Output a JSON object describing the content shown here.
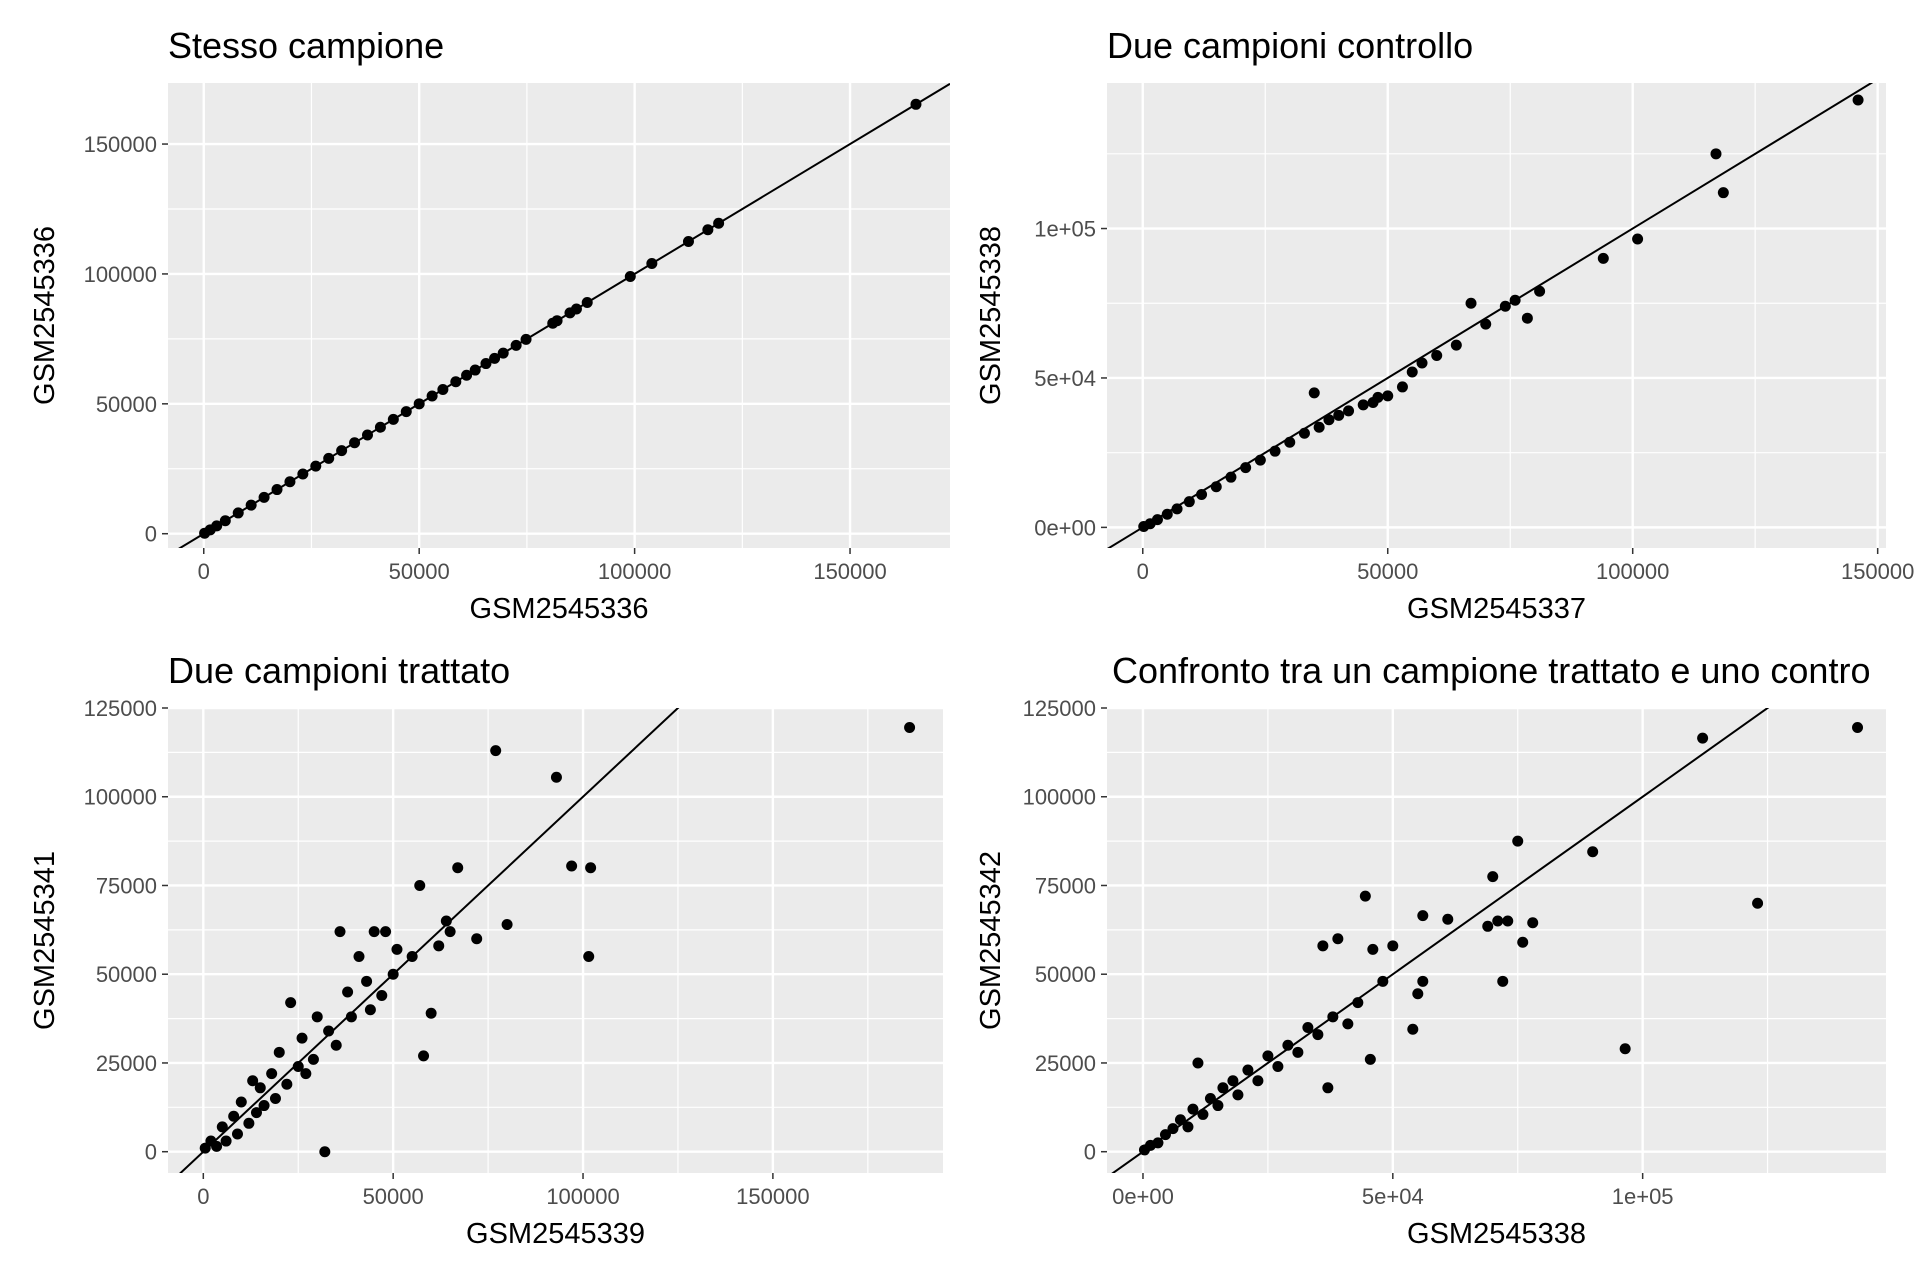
{
  "chart_data": [
    {
      "type": "scatter",
      "title": "Stesso campione",
      "xlabel": "GSM2545336",
      "ylabel": "GSM2545336",
      "xlim": [
        -8300,
        173200
      ],
      "ylim": [
        -5500,
        173500
      ],
      "xticks": [
        0,
        50000,
        100000,
        150000
      ],
      "xtick_labels": [
        "0",
        "50000",
        "100000",
        "150000"
      ],
      "yticks": [
        0,
        50000,
        100000,
        150000
      ],
      "ytick_labels": [
        "0",
        "50000",
        "100000",
        "150000"
      ],
      "reference_line": {
        "slope": 1,
        "intercept": 0
      },
      "grid": true,
      "points": [
        [
          200,
          200
        ],
        [
          1500,
          1500
        ],
        [
          3000,
          3000
        ],
        [
          5000,
          5000
        ],
        [
          8000,
          8000
        ],
        [
          11000,
          11000
        ],
        [
          14000,
          14000
        ],
        [
          17000,
          17000
        ],
        [
          20000,
          20000
        ],
        [
          23000,
          23000
        ],
        [
          26000,
          26000
        ],
        [
          29000,
          29000
        ],
        [
          32000,
          32000
        ],
        [
          35000,
          35000
        ],
        [
          38000,
          38000
        ],
        [
          41000,
          41000
        ],
        [
          44000,
          44000
        ],
        [
          47000,
          47000
        ],
        [
          50000,
          50000
        ],
        [
          53000,
          53000
        ],
        [
          55500,
          55500
        ],
        [
          58500,
          58500
        ],
        [
          61000,
          61000
        ],
        [
          63000,
          63000
        ],
        [
          65500,
          65500
        ],
        [
          67500,
          67500
        ],
        [
          69500,
          69500
        ],
        [
          72500,
          72500
        ],
        [
          74800,
          74800
        ],
        [
          81000,
          81000
        ],
        [
          82000,
          82000
        ],
        [
          85000,
          85000
        ],
        [
          86500,
          86500
        ],
        [
          89000,
          89000
        ],
        [
          99000,
          99000
        ],
        [
          104000,
          104000
        ],
        [
          112500,
          112500
        ],
        [
          117000,
          117000
        ],
        [
          119500,
          119500
        ],
        [
          165300,
          165300
        ]
      ]
    },
    {
      "type": "scatter",
      "title": "Due campioni controllo",
      "xlabel": "GSM2545337",
      "ylabel": "GSM2545338",
      "xlim": [
        -7300,
        151700
      ],
      "ylim": [
        -6900,
        148700
      ],
      "xticks": [
        0,
        50000,
        100000,
        150000
      ],
      "xtick_labels": [
        "0",
        "50000",
        "100000",
        "150000"
      ],
      "yticks": [
        0,
        50000,
        100000
      ],
      "ytick_labels": [
        "0e+00",
        "5e+04",
        "1e+05"
      ],
      "reference_line": {
        "slope": 1,
        "intercept": 0
      },
      "grid": true,
      "points": [
        [
          200,
          300
        ],
        [
          1500,
          1200
        ],
        [
          3000,
          2600
        ],
        [
          5000,
          4400
        ],
        [
          7000,
          6200
        ],
        [
          9500,
          8600
        ],
        [
          12000,
          11000
        ],
        [
          15000,
          13600
        ],
        [
          18000,
          16800
        ],
        [
          21000,
          20000
        ],
        [
          24000,
          22500
        ],
        [
          27000,
          25500
        ],
        [
          30000,
          28500
        ],
        [
          33000,
          31500
        ],
        [
          36000,
          33500
        ],
        [
          38000,
          36000
        ],
        [
          40000,
          37500
        ],
        [
          42000,
          39000
        ],
        [
          45000,
          41000
        ],
        [
          48000,
          43500
        ],
        [
          35000,
          45000
        ],
        [
          47000,
          41800
        ],
        [
          50000,
          44000
        ],
        [
          53000,
          47000
        ],
        [
          55000,
          52000
        ],
        [
          57000,
          55000
        ],
        [
          60000,
          57500
        ],
        [
          64000,
          61000
        ],
        [
          67000,
          75000
        ],
        [
          70000,
          68000
        ],
        [
          74000,
          74000
        ],
        [
          76000,
          76000
        ],
        [
          78500,
          70000
        ],
        [
          81000,
          79000
        ],
        [
          94000,
          90000
        ],
        [
          101000,
          96500
        ],
        [
          117000,
          125000
        ],
        [
          118500,
          112000
        ],
        [
          146000,
          143000
        ]
      ]
    },
    {
      "type": "scatter",
      "title": "Due campioni trattato",
      "xlabel": "GSM2545339",
      "ylabel": "GSM2545341",
      "xlim": [
        -9300,
        194800
      ],
      "ylim": [
        -6000,
        125000
      ],
      "xticks": [
        0,
        50000,
        100000,
        150000
      ],
      "xtick_labels": [
        "0",
        "50000",
        "100000",
        "150000"
      ],
      "yticks": [
        0,
        25000,
        50000,
        75000,
        100000,
        125000
      ],
      "ytick_labels": [
        "0",
        "25000",
        "50000",
        "75000",
        "100000",
        "125000"
      ],
      "reference_line": {
        "slope": 1,
        "intercept": 0
      },
      "grid": true,
      "points": [
        [
          500,
          1000
        ],
        [
          2000,
          3000
        ],
        [
          3500,
          1500
        ],
        [
          5000,
          7000
        ],
        [
          6000,
          3000
        ],
        [
          8000,
          10000
        ],
        [
          9000,
          5000
        ],
        [
          10000,
          14000
        ],
        [
          12000,
          8000
        ],
        [
          13000,
          20000
        ],
        [
          14000,
          11000
        ],
        [
          15000,
          18000
        ],
        [
          16000,
          13000
        ],
        [
          18000,
          22000
        ],
        [
          19000,
          15000
        ],
        [
          20000,
          28000
        ],
        [
          22000,
          19000
        ],
        [
          23000,
          42000
        ],
        [
          25000,
          24000
        ],
        [
          26000,
          32000
        ],
        [
          27000,
          22000
        ],
        [
          29000,
          26000
        ],
        [
          30000,
          38000
        ],
        [
          32000,
          0
        ],
        [
          33000,
          34000
        ],
        [
          35000,
          30000
        ],
        [
          36000,
          62000
        ],
        [
          38000,
          45000
        ],
        [
          39000,
          38000
        ],
        [
          41000,
          55000
        ],
        [
          43000,
          48000
        ],
        [
          44000,
          40000
        ],
        [
          45000,
          62000
        ],
        [
          47000,
          44000
        ],
        [
          48000,
          62000
        ],
        [
          50000,
          50000
        ],
        [
          51000,
          57000
        ],
        [
          55000,
          55000
        ],
        [
          57000,
          75000
        ],
        [
          58000,
          27000
        ],
        [
          60000,
          39000
        ],
        [
          62000,
          58000
        ],
        [
          64000,
          65000
        ],
        [
          65000,
          62000
        ],
        [
          67000,
          80000
        ],
        [
          72000,
          60000
        ],
        [
          77000,
          113000
        ],
        [
          80000,
          64000
        ],
        [
          93000,
          105500
        ],
        [
          97000,
          80500
        ],
        [
          102000,
          80000
        ],
        [
          101500,
          55000
        ],
        [
          186000,
          119500
        ]
      ]
    },
    {
      "type": "scatter",
      "title": "Confronto tra un campione trattato e uno contro",
      "xlabel": "GSM2545338",
      "ylabel": "GSM2545342",
      "xlim": [
        -7200,
        148700
      ],
      "ylim": [
        -6000,
        125000
      ],
      "xticks": [
        0,
        50000,
        100000
      ],
      "xtick_labels": [
        "0e+00",
        "5e+04",
        "1e+05"
      ],
      "yticks": [
        0,
        25000,
        50000,
        75000,
        100000,
        125000
      ],
      "ytick_labels": [
        "0",
        "25000",
        "50000",
        "75000",
        "100000",
        "125000"
      ],
      "reference_line": {
        "slope": 1,
        "intercept": 0
      },
      "grid": true,
      "points": [
        [
          300,
          500
        ],
        [
          1500,
          1800
        ],
        [
          3000,
          2500
        ],
        [
          4500,
          4800
        ],
        [
          6000,
          6500
        ],
        [
          7500,
          9000
        ],
        [
          9000,
          7000
        ],
        [
          10000,
          12000
        ],
        [
          11000,
          25000
        ],
        [
          12000,
          10500
        ],
        [
          13500,
          15000
        ],
        [
          15000,
          13000
        ],
        [
          16000,
          18000
        ],
        [
          18000,
          20000
        ],
        [
          19000,
          16000
        ],
        [
          21000,
          23000
        ],
        [
          23000,
          20000
        ],
        [
          25000,
          27000
        ],
        [
          27000,
          24000
        ],
        [
          29000,
          30000
        ],
        [
          31000,
          28000
        ],
        [
          33000,
          35000
        ],
        [
          35000,
          33000
        ],
        [
          36000,
          58000
        ],
        [
          37000,
          18000
        ],
        [
          38000,
          38000
        ],
        [
          39000,
          60000
        ],
        [
          41000,
          36000
        ],
        [
          43000,
          42000
        ],
        [
          44500,
          72000
        ],
        [
          45500,
          26000
        ],
        [
          46000,
          57000
        ],
        [
          48000,
          48000
        ],
        [
          50000,
          58000
        ],
        [
          54000,
          34500
        ],
        [
          55000,
          44500
        ],
        [
          56000,
          66500
        ],
        [
          56000,
          48000
        ],
        [
          61000,
          65500
        ],
        [
          69000,
          63500
        ],
        [
          70000,
          77500
        ],
        [
          71000,
          65000
        ],
        [
          72000,
          48000
        ],
        [
          73000,
          65000
        ],
        [
          75000,
          87500
        ],
        [
          76000,
          59000
        ],
        [
          78000,
          64500
        ],
        [
          90000,
          84500
        ],
        [
          96500,
          29000
        ],
        [
          112000,
          116500
        ],
        [
          123000,
          70000
        ],
        [
          143000,
          119500
        ]
      ]
    }
  ]
}
